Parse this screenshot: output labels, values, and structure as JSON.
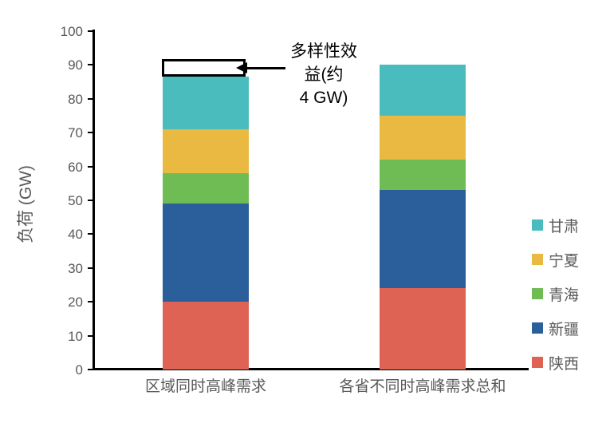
{
  "chart_data": {
    "type": "bar",
    "stacked": true,
    "title": "",
    "ylabel": "负荷 (GW)",
    "xlabel": "",
    "ylim": [
      0,
      100
    ],
    "yticks": [
      0,
      10,
      20,
      30,
      40,
      50,
      60,
      70,
      80,
      90,
      100
    ],
    "grid": false,
    "categories": [
      "区域同时高峰需求",
      "各省不同时高峰需求总和"
    ],
    "series": [
      {
        "name": "陕西",
        "color": "#DF6355",
        "values": [
          20,
          24
        ]
      },
      {
        "name": "新疆",
        "color": "#2A5F9B",
        "values": [
          29,
          29
        ]
      },
      {
        "name": "青海",
        "color": "#70BC54",
        "values": [
          9,
          9
        ]
      },
      {
        "name": "宁夏",
        "color": "#E9B942",
        "values": [
          13,
          13
        ]
      },
      {
        "name": "甘肃",
        "color": "#4BBCBE",
        "values": [
          15.5,
          15
        ]
      }
    ],
    "totals": [
      86.5,
      90
    ],
    "legend": {
      "position": "right",
      "items": [
        {
          "label": "甘肃",
          "color": "#4BBCBE"
        },
        {
          "label": "宁夏",
          "color": "#E9B942"
        },
        {
          "label": "青海",
          "color": "#70BC54"
        },
        {
          "label": "新疆",
          "color": "#2A5F9B"
        },
        {
          "label": "陕西",
          "color": "#DF6355"
        }
      ]
    },
    "annotation": {
      "text": "多样性效益(约 4 GW)",
      "lines": [
        "多样性效",
        "益(约",
        "4 GW)"
      ],
      "box_from_gw": 86.5,
      "box_to_gw": 91.8,
      "box_fill": "#FFFFFF",
      "box_border": "#000000"
    }
  },
  "colors": {
    "background": "#FFFFFF",
    "axis_line": "#000000",
    "tick_label": "#595959",
    "category_label": "#595959",
    "legend_label": "#595959",
    "annotation_text": "#000000"
  }
}
